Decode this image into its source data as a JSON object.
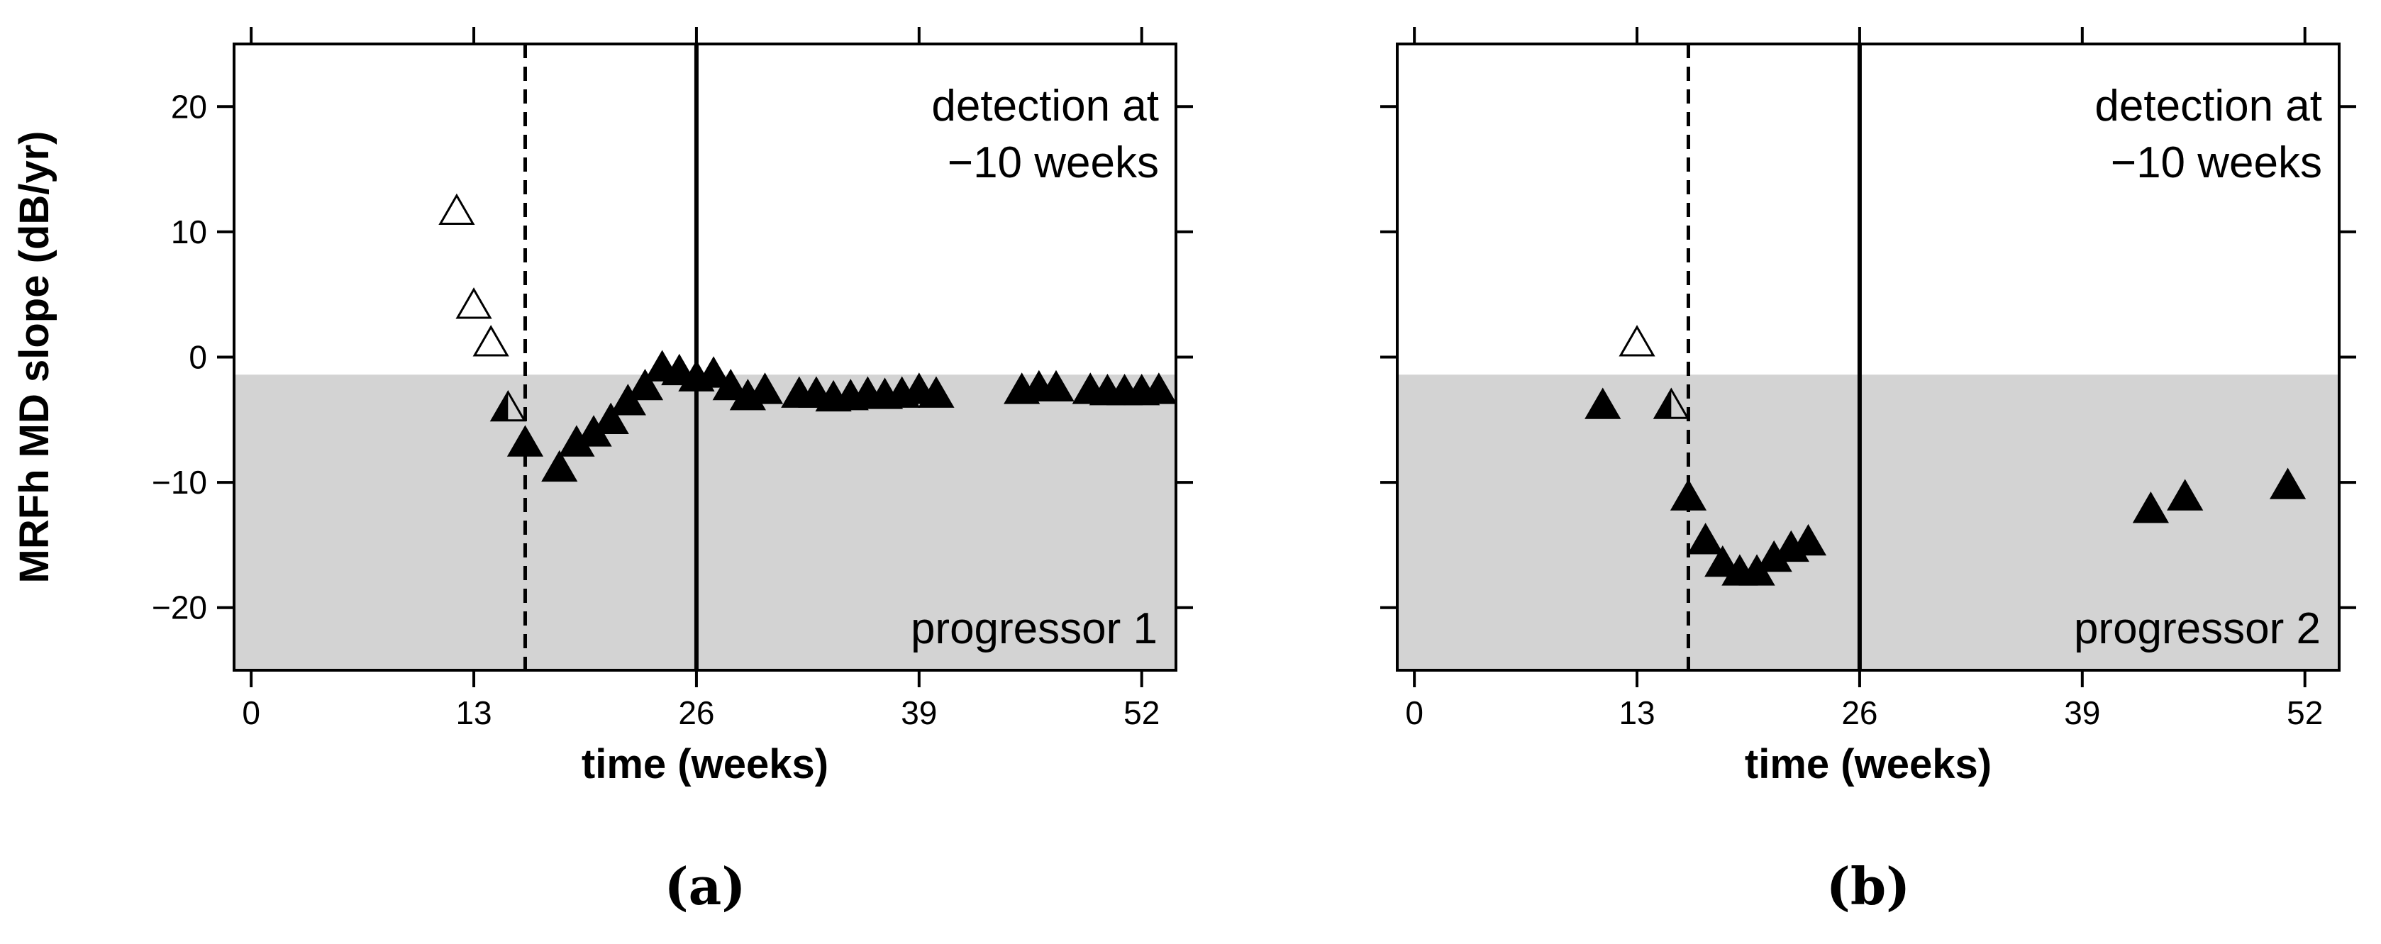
{
  "chart_data": [
    {
      "type": "scatter",
      "panel_label": "(a)",
      "xlabel": "time (weeks)",
      "ylabel": "MRFh MD slope (dB/yr)",
      "xlim": [
        -1,
        54
      ],
      "ylim": [
        -25,
        25
      ],
      "xticks": [
        0,
        13,
        26,
        39,
        52
      ],
      "yticks": [
        -20,
        -10,
        0,
        10,
        20
      ],
      "xtick_labels": [
        "0",
        "13",
        "26",
        "39",
        "52"
      ],
      "ytick_labels": [
        "−20",
        "−10",
        "0",
        "10",
        "20"
      ],
      "shade_below": -1.4,
      "dashed_x": 16,
      "solid_x": 26,
      "annotation_line1": "detection at",
      "annotation_line2": "−10 weeks",
      "group_label": "progressor 1",
      "series": [
        {
          "name": "open",
          "x": [
            12,
            13,
            14
          ],
          "y": [
            11.5,
            4,
            1
          ]
        },
        {
          "name": "half",
          "x": [
            15
          ],
          "y": [
            -4.2
          ]
        },
        {
          "name": "filled",
          "x": [
            16,
            18,
            19,
            20,
            21,
            22,
            23,
            24,
            25,
            26,
            27,
            28,
            29,
            30,
            32,
            33,
            34,
            35,
            36,
            37,
            38,
            39,
            40,
            45,
            46,
            47,
            49,
            50,
            51,
            52,
            53
          ],
          "y": [
            -7,
            -9,
            -7,
            -6.2,
            -5.2,
            -3.7,
            -2.5,
            -1,
            -1.3,
            -1.8,
            -1.5,
            -2.5,
            -3.3,
            -2.8,
            -3.1,
            -3.1,
            -3.4,
            -3.3,
            -3.1,
            -3.2,
            -3.1,
            -2.8,
            -3.1,
            -2.8,
            -2.6,
            -2.6,
            -2.8,
            -2.9,
            -2.9,
            -2.9,
            -2.8
          ]
        }
      ]
    },
    {
      "type": "scatter",
      "panel_label": "(b)",
      "xlabel": "time (weeks)",
      "ylabel": "",
      "xlim": [
        -1,
        54
      ],
      "ylim": [
        -25,
        25
      ],
      "xticks": [
        0,
        13,
        26,
        39,
        52
      ],
      "yticks": [
        -20,
        -10,
        0,
        10,
        20
      ],
      "xtick_labels": [
        "0",
        "13",
        "26",
        "39",
        "52"
      ],
      "ytick_labels": [],
      "shade_below": -1.4,
      "dashed_x": 16,
      "solid_x": 26,
      "annotation_line1": "detection at",
      "annotation_line2": "−10 weeks",
      "group_label": "progressor 2",
      "series": [
        {
          "name": "open",
          "x": [
            13
          ],
          "y": [
            1
          ]
        },
        {
          "name": "half",
          "x": [
            15
          ],
          "y": [
            -4
          ]
        },
        {
          "name": "filled",
          "x": [
            11,
            16,
            17,
            18,
            19,
            20,
            21,
            22,
            23,
            43,
            45,
            51
          ],
          "y": [
            -4,
            -11.3,
            -14.8,
            -16.6,
            -17.3,
            -17.3,
            -16.2,
            -15.4,
            -14.9,
            -12.3,
            -11.3,
            -10.4
          ]
        }
      ]
    }
  ]
}
